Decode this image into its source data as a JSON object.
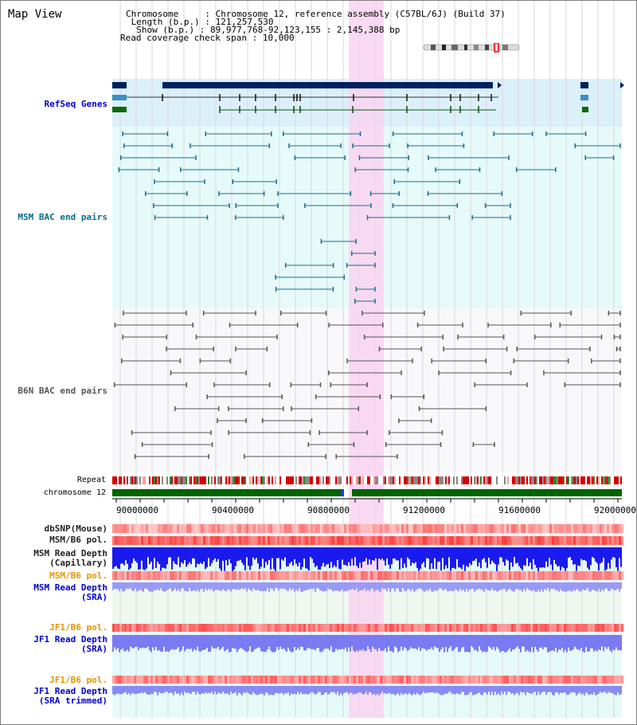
{
  "title": "Map View",
  "info": {
    "chromosome_key": "Chromosome",
    "chromosome_val": "Chromosome 12, reference assembly (C57BL/6J) (Build 37)",
    "length_key": "Length (b.p.)",
    "length_val": "121,257,530",
    "show_key": "Show (b.p.)",
    "show_val": "89,977,768-92,123,155 : 2,145,388 bp",
    "coverage_key": "Read coverage check span",
    "coverage_val": "10,000"
  },
  "tracks": {
    "refseq": "RefSeq Genes",
    "msm_bac": "MSM BAC end pairs",
    "b6n_bac": "B6N BAC end pairs",
    "repeat": "Repeat",
    "chromosome": "chromosome 12",
    "dbsnp": "dbSNP(Mouse)",
    "msm_b6_pol_1": "MSM/B6 pol.",
    "msm_depth_cap_1": "MSM Read Depth",
    "msm_depth_cap_2": "(Capillary)",
    "msm_b6_pol_2": "MSM/B6 pol.",
    "msm_depth_sra_1": "MSM Read Depth",
    "msm_depth_sra_2": "(SRA)",
    "jf1_b6_pol_1": "JF1/B6 pol.",
    "jf1_depth_sra_1": "JF1 Read Depth",
    "jf1_depth_sra_2": "(SRA)",
    "jf1_b6_pol_2": "JF1/B6 pol.",
    "jf1_depth_trim_1": "JF1 Read Depth",
    "jf1_depth_trim_2": "(SRA trimmed)"
  },
  "axis": {
    "ticks": [
      "90000000",
      "90400000",
      "90800000",
      "91200000",
      "91600000",
      "92000000"
    ]
  },
  "colors": {
    "label_blue": "#0000cc",
    "label_teal": "#006f8f",
    "label_orange": "#e59400",
    "refseq_fill": "#dcf0fa",
    "msm_fill": "#e6fafa",
    "b6n_fill": "#f8f8fa",
    "highlight": "#f9d4f0",
    "chromosome_green": "#006400",
    "depth_blue": "#0000ee",
    "sra_blue": "#8c8cf5"
  }
}
